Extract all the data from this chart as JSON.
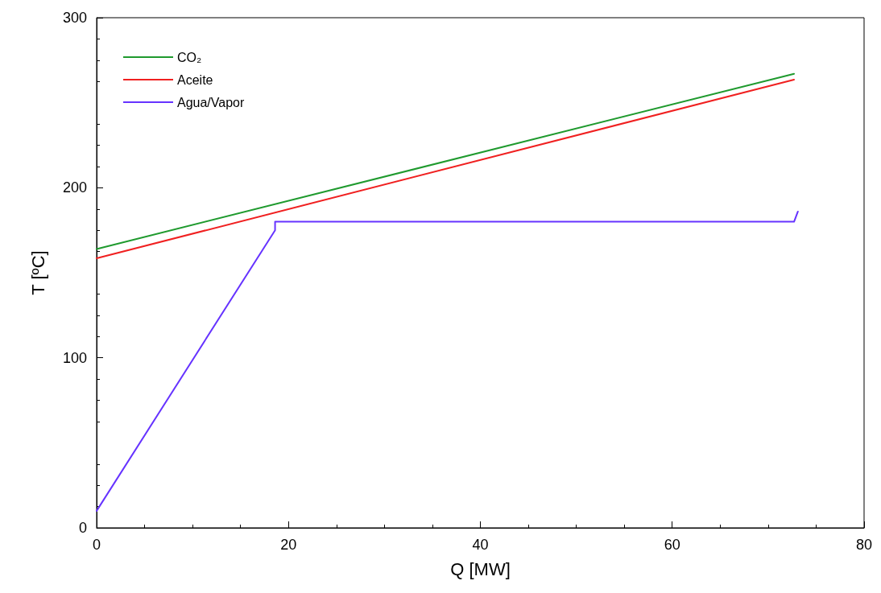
{
  "chart_data": {
    "type": "line",
    "xlabel": "Q [MW]",
    "ylabel": "T [ºC]",
    "xlim": [
      0,
      80
    ],
    "xticks": [
      0,
      20,
      40,
      60,
      80
    ],
    "ylim": [
      0,
      300
    ],
    "yticks": [
      0,
      100,
      200,
      300
    ],
    "grid": false,
    "legend": "top left",
    "marker": "none",
    "line_style": "solid",
    "series": [
      {
        "name": "CO₂",
        "color": "#1f9a2e",
        "x": [
          0,
          72.7
        ],
        "values": [
          164,
          267
        ]
      },
      {
        "name": "Aceite",
        "color": "#f02020",
        "x": [
          0,
          72.7
        ],
        "values": [
          158.5,
          263.6
        ]
      },
      {
        "name": "Agua/Vapor",
        "color": "#6633ff",
        "x": [
          0,
          18.6,
          18.6,
          72.7,
          73.1
        ],
        "values": [
          10,
          175,
          180,
          180,
          186
        ]
      }
    ]
  }
}
